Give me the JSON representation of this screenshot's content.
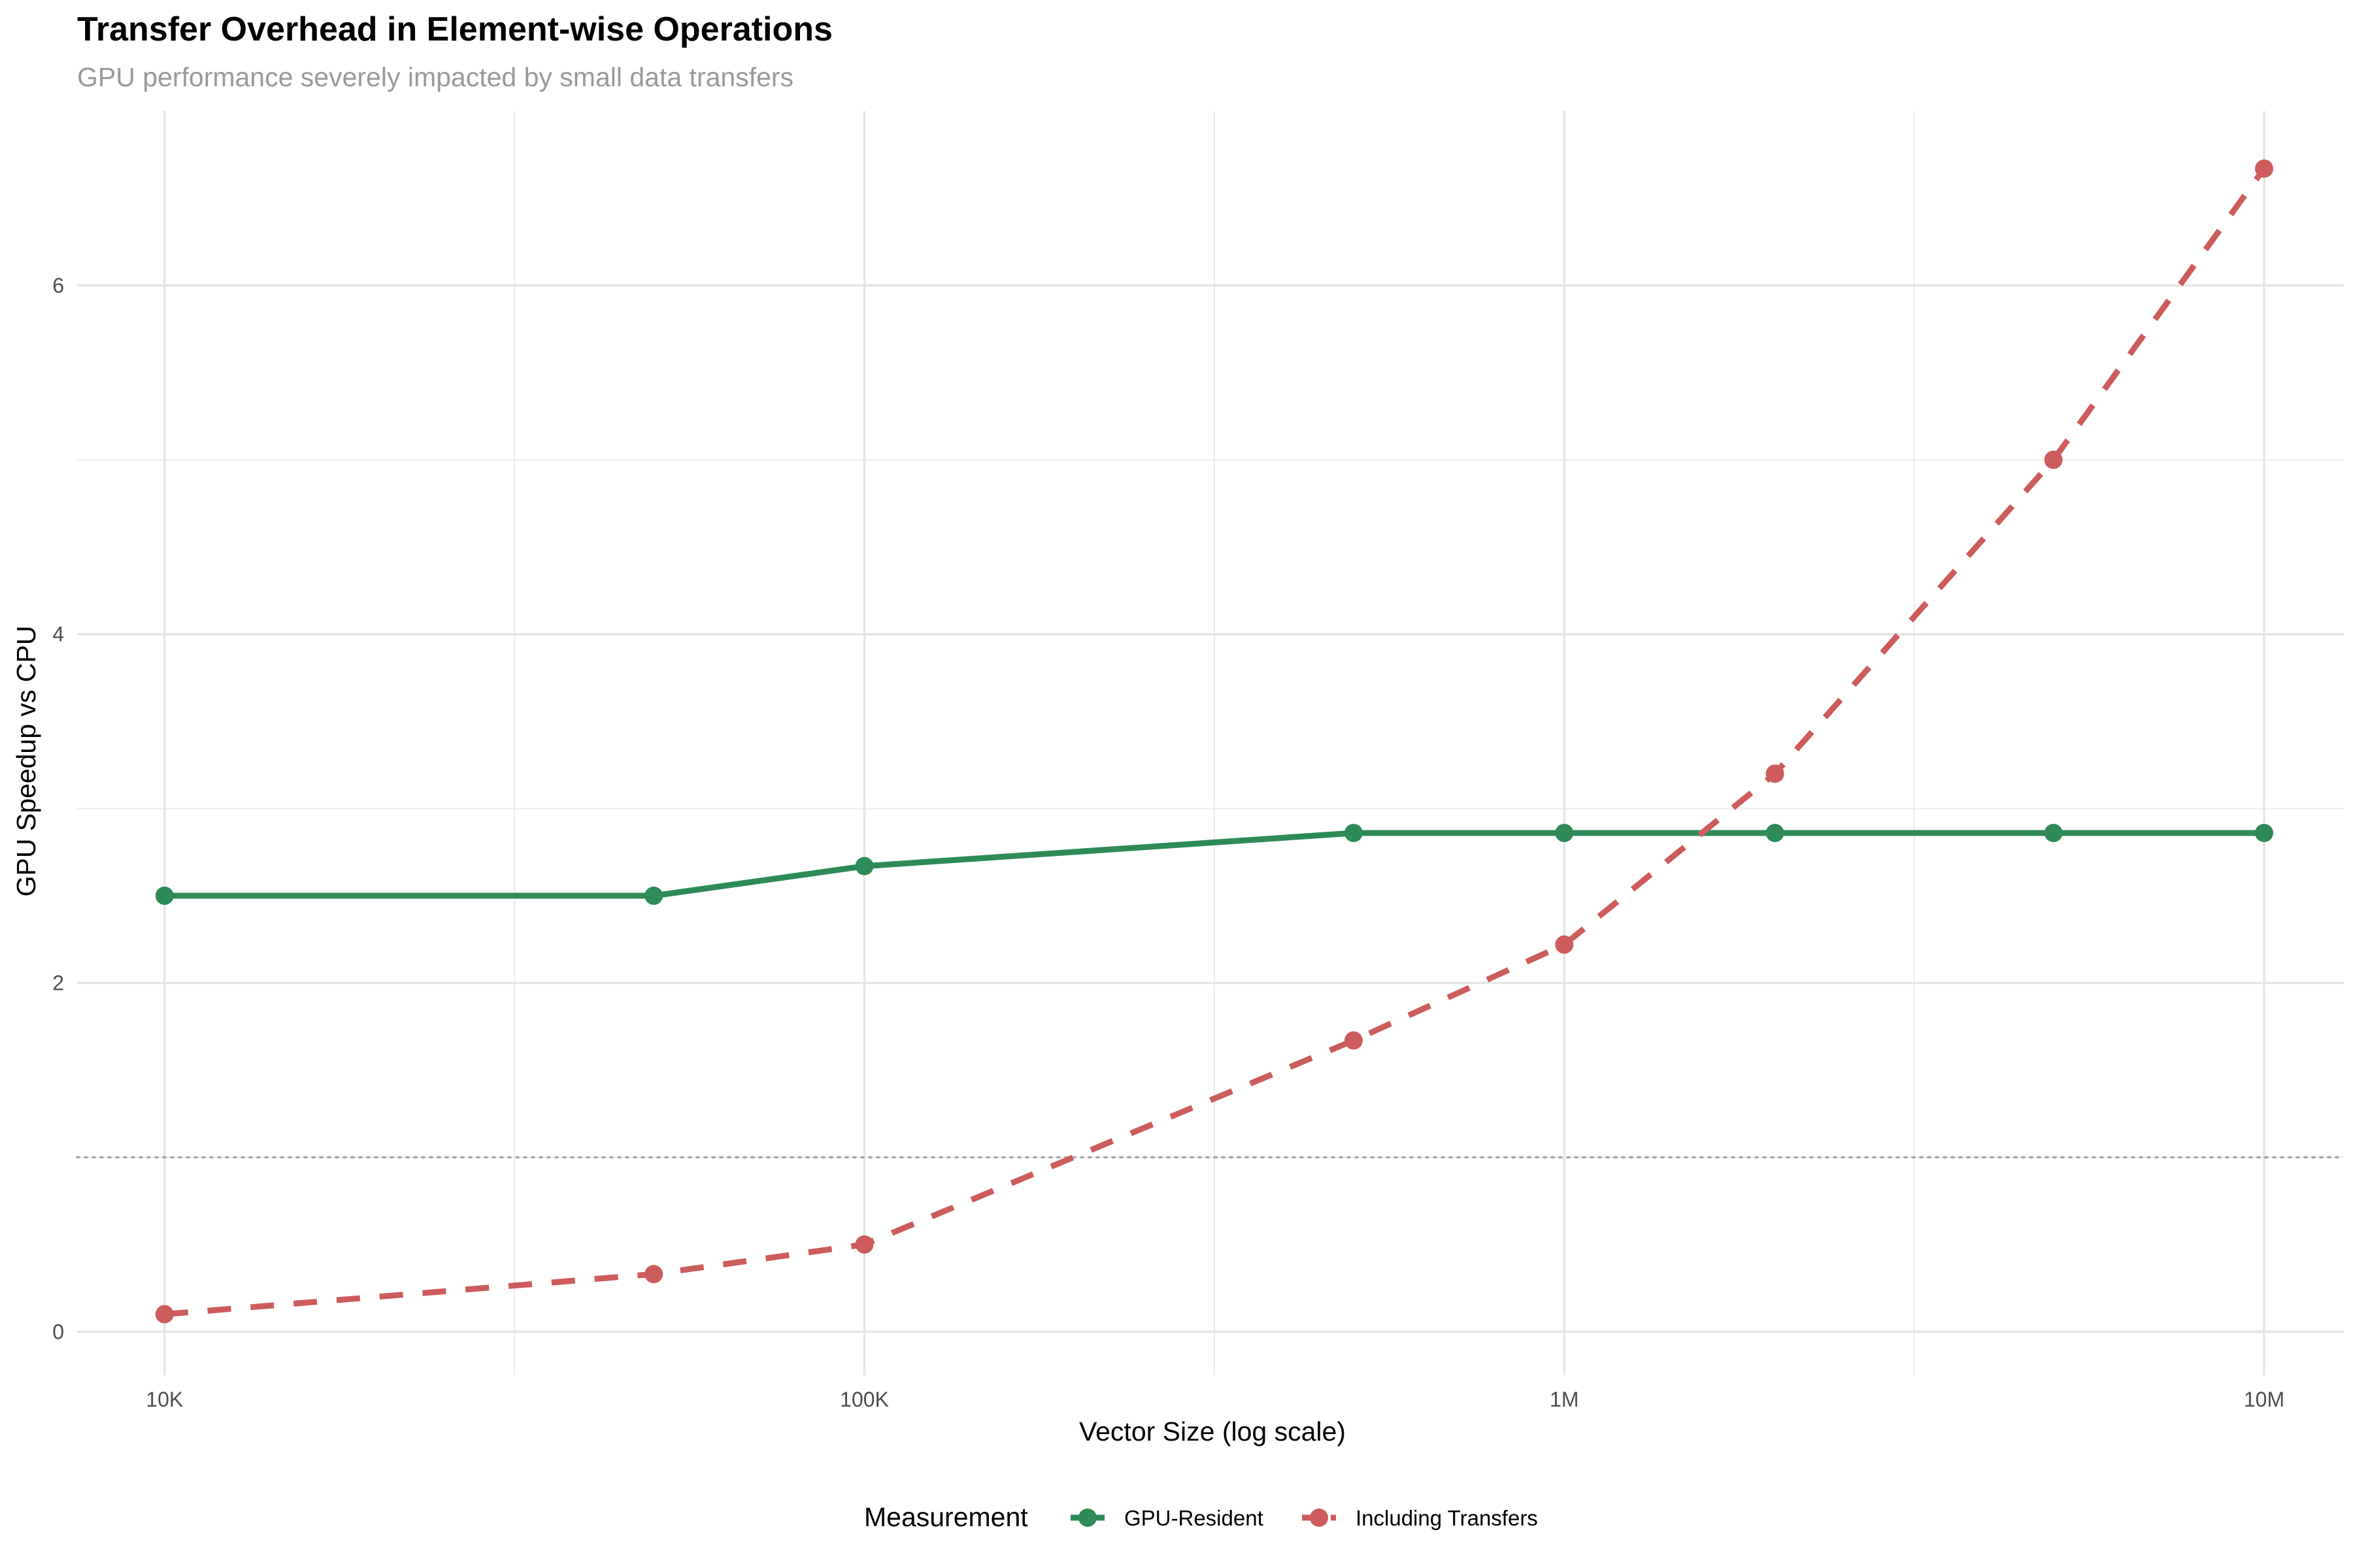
{
  "chart_data": {
    "type": "line",
    "title": "Transfer Overhead in Element-wise Operations",
    "subtitle": "GPU performance severely impacted by small data transfers",
    "xlabel": "Vector Size (log scale)",
    "ylabel": "GPU Speedup vs CPU",
    "x_scale": "log",
    "xlim": [
      7500,
      13000000
    ],
    "ylim": [
      -0.25,
      7.0
    ],
    "x_ticks": [
      {
        "value": 10000,
        "label": "10K"
      },
      {
        "value": 100000,
        "label": "100K"
      },
      {
        "value": 1000000,
        "label": "1M"
      },
      {
        "value": 10000000,
        "label": "10M"
      }
    ],
    "x_minor_ticks": [
      31623,
      316228,
      3162278
    ],
    "y_ticks": [
      {
        "value": 0,
        "label": "0"
      },
      {
        "value": 2,
        "label": "2"
      },
      {
        "value": 4,
        "label": "4"
      },
      {
        "value": 6,
        "label": "6"
      }
    ],
    "y_minor_ticks": [
      1,
      3,
      5
    ],
    "reference_line": {
      "y": 1,
      "style": "dotted",
      "color": "#a6a6a6"
    },
    "grid": true,
    "legend": {
      "title": "Measurement",
      "position": "bottom"
    },
    "series": [
      {
        "name": "GPU-Resident",
        "color": "#2e8b57",
        "line_style": "solid",
        "x": [
          10000,
          50000,
          100000,
          500000,
          1000000,
          2000000,
          5000000,
          10000000
        ],
        "y": [
          2.5,
          2.5,
          2.67,
          2.86,
          2.86,
          2.86,
          2.86,
          2.86
        ]
      },
      {
        "name": "Including Transfers",
        "color": "#cd5c5c",
        "line_style": "dashed",
        "x": [
          10000,
          50000,
          100000,
          500000,
          1000000,
          2000000,
          5000000,
          10000000
        ],
        "y": [
          0.1,
          0.33,
          0.5,
          1.67,
          2.22,
          3.2,
          5.0,
          6.67
        ]
      }
    ]
  }
}
